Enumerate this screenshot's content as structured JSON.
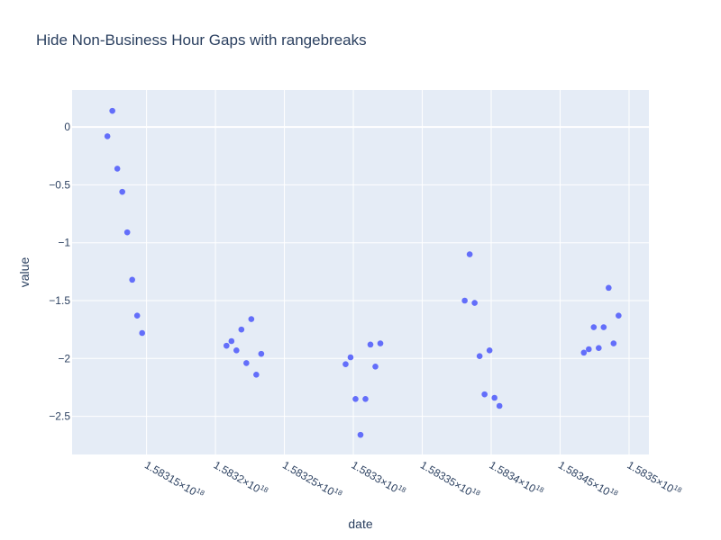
{
  "chart_data": {
    "type": "scatter",
    "title": "Hide Non-Business Hour Gaps with rangebreaks",
    "xlabel": "date",
    "ylabel": "value",
    "grid": true,
    "legend": "none",
    "colors": {
      "background": "#e5ecf6",
      "marker": "#636efa",
      "text": "#2a3f5f",
      "grid": "#ffffff"
    },
    "xlim": [
      1.583096e+18,
      1.5835144e+18
    ],
    "ylim": [
      -2.83,
      0.32
    ],
    "x_ticks": [
      {
        "value": 1.58315e+18,
        "mantissa": "1.58315",
        "exp": "18"
      },
      {
        "value": 1.5832e+18,
        "mantissa": "1.5832",
        "exp": "18"
      },
      {
        "value": 1.58325e+18,
        "mantissa": "1.58325",
        "exp": "18"
      },
      {
        "value": 1.5833e+18,
        "mantissa": "1.5833",
        "exp": "18"
      },
      {
        "value": 1.58335e+18,
        "mantissa": "1.58335",
        "exp": "18"
      },
      {
        "value": 1.5834e+18,
        "mantissa": "1.5834",
        "exp": "18"
      },
      {
        "value": 1.58345e+18,
        "mantissa": "1.58345",
        "exp": "18"
      },
      {
        "value": 1.5835e+18,
        "mantissa": "1.5835",
        "exp": "18"
      }
    ],
    "y_ticks": [
      {
        "value": 0,
        "label": "0"
      },
      {
        "value": -0.5,
        "label": "−0.5"
      },
      {
        "value": -1,
        "label": "−1"
      },
      {
        "value": -1.5,
        "label": "−1.5"
      },
      {
        "value": -2,
        "label": "−2"
      },
      {
        "value": -2.5,
        "label": "−2.5"
      }
    ],
    "series": [
      {
        "points": [
          {
            "x": 1.5831216e+18,
            "y": -0.08
          },
          {
            "x": 1.5831252e+18,
            "y": 0.14
          },
          {
            "x": 1.5831288e+18,
            "y": -0.36
          },
          {
            "x": 1.5831324e+18,
            "y": -0.56
          },
          {
            "x": 1.583136e+18,
            "y": -0.91
          },
          {
            "x": 1.5831396e+18,
            "y": -1.32
          },
          {
            "x": 1.5831432e+18,
            "y": -1.63
          },
          {
            "x": 1.5831468e+18,
            "y": -1.78
          },
          {
            "x": 1.583208e+18,
            "y": -1.89
          },
          {
            "x": 1.5832116e+18,
            "y": -1.85
          },
          {
            "x": 1.5832152e+18,
            "y": -1.93
          },
          {
            "x": 1.5832188e+18,
            "y": -1.75
          },
          {
            "x": 1.5832224e+18,
            "y": -2.04
          },
          {
            "x": 1.583226e+18,
            "y": -1.66
          },
          {
            "x": 1.5832296e+18,
            "y": -2.14
          },
          {
            "x": 1.5832332e+18,
            "y": -1.96
          },
          {
            "x": 1.5832944e+18,
            "y": -2.05
          },
          {
            "x": 1.583298e+18,
            "y": -1.99
          },
          {
            "x": 1.5833016e+18,
            "y": -2.35
          },
          {
            "x": 1.5833052e+18,
            "y": -2.66
          },
          {
            "x": 1.5833088e+18,
            "y": -2.35
          },
          {
            "x": 1.5833124e+18,
            "y": -1.88
          },
          {
            "x": 1.583316e+18,
            "y": -2.07
          },
          {
            "x": 1.5833196e+18,
            "y": -1.87
          },
          {
            "x": 1.5833808e+18,
            "y": -1.5
          },
          {
            "x": 1.5833844e+18,
            "y": -1.1
          },
          {
            "x": 1.583388e+18,
            "y": -1.52
          },
          {
            "x": 1.5833916e+18,
            "y": -1.98
          },
          {
            "x": 1.5833952e+18,
            "y": -2.31
          },
          {
            "x": 1.5833988e+18,
            "y": -1.93
          },
          {
            "x": 1.5834024e+18,
            "y": -2.34
          },
          {
            "x": 1.583406e+18,
            "y": -2.41
          },
          {
            "x": 1.5834672e+18,
            "y": -1.95
          },
          {
            "x": 1.5834708e+18,
            "y": -1.92
          },
          {
            "x": 1.5834744e+18,
            "y": -1.73
          },
          {
            "x": 1.583478e+18,
            "y": -1.91
          },
          {
            "x": 1.5834816e+18,
            "y": -1.73
          },
          {
            "x": 1.5834852e+18,
            "y": -1.39
          },
          {
            "x": 1.5834888e+18,
            "y": -1.87
          },
          {
            "x": 1.5834924e+18,
            "y": -1.63
          }
        ]
      }
    ]
  }
}
